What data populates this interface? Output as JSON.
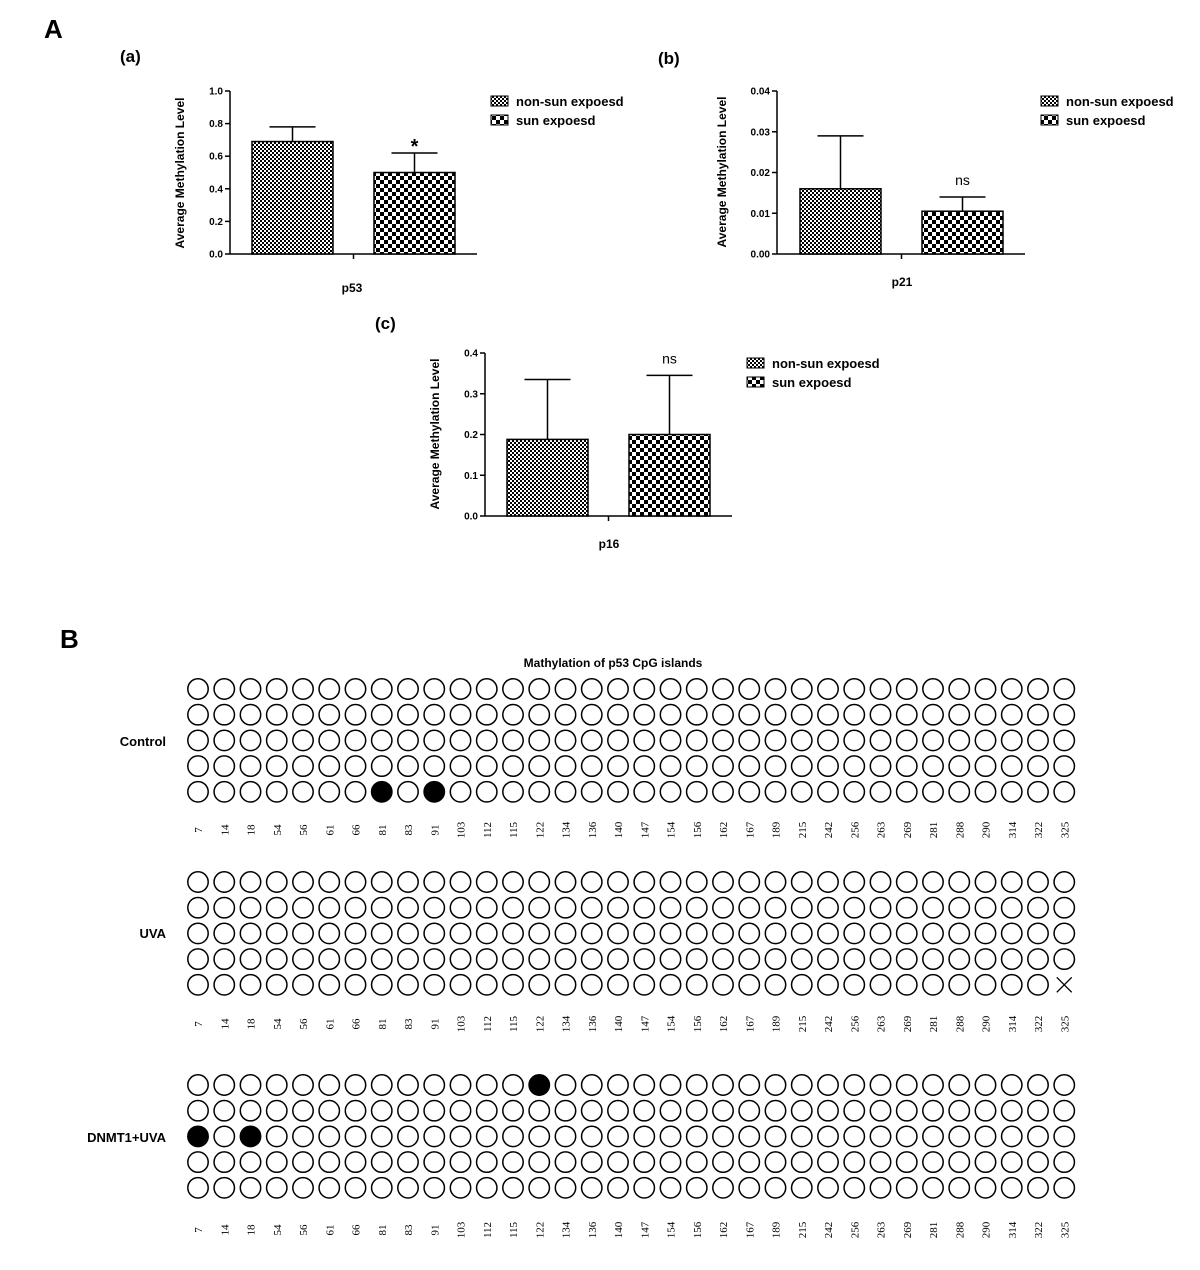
{
  "panel_a_label": "A",
  "panel_b_label": "B",
  "colors": {
    "ink": "#000000",
    "background": "#ffffff"
  },
  "chart_data": [
    {
      "type": "bar",
      "subplot": "(a)",
      "xlabel": "p53",
      "ylabel": "Average Methylation Level",
      "ylim": [
        0,
        1.0
      ],
      "yticks": [
        "0.0",
        "0.2",
        "0.4",
        "0.6",
        "0.8",
        "1.0"
      ],
      "categories": [
        "non-sun expoesd",
        "sun expoesd"
      ],
      "series": [
        {
          "name": "non-sun expoesd",
          "value": 0.69,
          "error": 0.09,
          "pattern": "dense-check"
        },
        {
          "name": "sun expoesd",
          "value": 0.5,
          "error": 0.12,
          "pattern": "coarse-check"
        }
      ],
      "annotation": "*",
      "legend": [
        "non-sun expoesd",
        "sun expoesd"
      ],
      "legend_position": "right"
    },
    {
      "type": "bar",
      "subplot": "(b)",
      "xlabel": "p21",
      "ylabel": "Average Methylation Level",
      "ylim": [
        0,
        0.04
      ],
      "yticks": [
        "0.00",
        "0.01",
        "0.02",
        "0.03",
        "0.04"
      ],
      "categories": [
        "non-sun expoesd",
        "sun expoesd"
      ],
      "series": [
        {
          "name": "non-sun expoesd",
          "value": 0.016,
          "error": 0.013,
          "pattern": "dense-check"
        },
        {
          "name": "sun expoesd",
          "value": 0.0105,
          "error": 0.0035,
          "pattern": "coarse-check"
        }
      ],
      "annotation": "ns",
      "legend": [
        "non-sun expoesd",
        "sun expoesd"
      ],
      "legend_position": "right"
    },
    {
      "type": "bar",
      "subplot": "(c)",
      "xlabel": "p16",
      "ylabel": "Average Methylation Level",
      "ylim": [
        0,
        0.4
      ],
      "yticks": [
        "0.0",
        "0.1",
        "0.2",
        "0.3",
        "0.4"
      ],
      "categories": [
        "non-sun expoesd",
        "sun expoesd"
      ],
      "series": [
        {
          "name": "non-sun expoesd",
          "value": 0.188,
          "error": 0.147,
          "pattern": "dense-check"
        },
        {
          "name": "sun expoesd",
          "value": 0.2,
          "error": 0.145,
          "pattern": "coarse-check"
        }
      ],
      "annotation": "ns",
      "legend": [
        "non-sun expoesd",
        "sun expoesd"
      ],
      "legend_position": "right"
    },
    {
      "type": "heatmap",
      "title": "Mathylation of p53 CpG islands",
      "positions": [
        "7",
        "14",
        "18",
        "54",
        "56",
        "61",
        "66",
        "81",
        "83",
        "91",
        "103",
        "112",
        "115",
        "122",
        "134",
        "136",
        "140",
        "147",
        "154",
        "156",
        "162",
        "167",
        "189",
        "215",
        "242",
        "256",
        "263",
        "269",
        "281",
        "288",
        "290",
        "314",
        "322",
        "325"
      ],
      "legend": {
        "0": "unmethylated (open circle)",
        "1": "methylated (filled circle)",
        "x": "missing"
      },
      "groups": [
        {
          "name": "Control",
          "rows": [
            "0000000000000000000000000000000000",
            "0000000000000000000000000000000000",
            "0000000000000000000000000000000000",
            "0000000000000000000000000000000000",
            "0000000101000000000000000000000000"
          ]
        },
        {
          "name": "UVA",
          "rows": [
            "0000000000000000000000000000000000",
            "0000000000000000000000000000000000",
            "0000000000000000000000000000000000",
            "0000000000000000000000000000000000",
            "000000000000000000000000000000000x"
          ]
        },
        {
          "name": "DNMT1+UVA",
          "rows": [
            "0000000000000100000000000000000000",
            "0000000000000000000000000000000000",
            "1010000000000000000000000000000000",
            "0000000000000000000000000000000000",
            "0000000000000000000000000000000000"
          ]
        }
      ]
    }
  ]
}
